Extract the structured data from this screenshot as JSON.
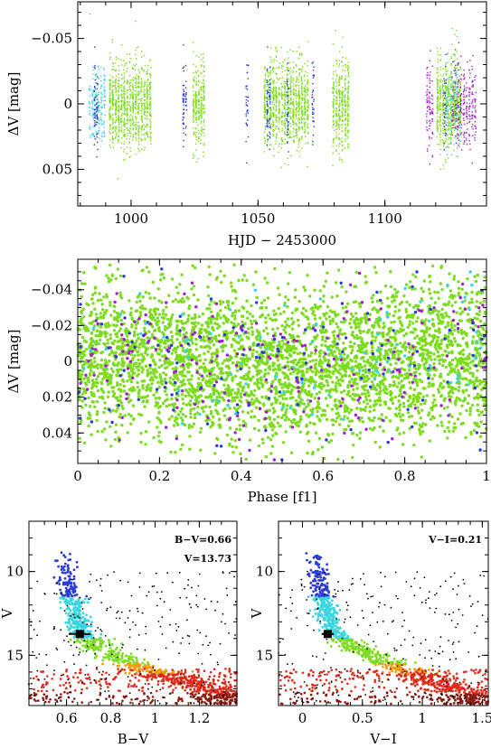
{
  "colors": {
    "cyan": "#3ad6e0",
    "green": "#7ddc1f",
    "blue": "#2a3ad8",
    "magenta": "#a020d0",
    "black": "#000000",
    "orange": "#f39a10",
    "red": "#dd2a1a",
    "darkred": "#8a1a10"
  },
  "chart_data": [
    {
      "type": "scatter",
      "xlabel": "HJD − 2453000",
      "ylabel": "ΔV [mag]",
      "xlim": [
        979,
        1140
      ],
      "ylim": [
        0.078,
        -0.078
      ],
      "y_inverted": true,
      "xticks": [
        1000,
        1050,
        1100
      ],
      "xtick_labels": [
        "1000",
        "1050",
        "1100"
      ],
      "yticks": [
        -0.05,
        0,
        0.05
      ],
      "ytick_labels": [
        "−0.05",
        "0",
        "0.05"
      ],
      "series": [
        {
          "color": "cyan",
          "segments": [
            [
              983,
              990
            ],
            [
              1124,
              1130
            ]
          ]
        },
        {
          "color": "green",
          "segments": [
            [
              991,
              1008
            ],
            [
              1024,
              1029
            ],
            [
              1052,
              1070
            ],
            [
              1079,
              1086
            ],
            [
              1120,
              1130
            ]
          ]
        },
        {
          "color": "blue",
          "segments": [
            [
              985,
              987
            ],
            [
              1020,
              1022
            ],
            [
              1045,
              1046
            ],
            [
              1053,
              1055
            ],
            [
              1061,
              1062
            ],
            [
              1071,
              1072
            ],
            [
              1123,
              1124
            ]
          ]
        },
        {
          "color": "magenta",
          "segments": [
            [
              1116,
              1119
            ],
            [
              1126,
              1136
            ]
          ]
        }
      ],
      "amplitude_mag": 0.03
    },
    {
      "type": "scatter",
      "xlabel": "Phase [f1]",
      "ylabel": "ΔV [mag]",
      "xlim": [
        0,
        1
      ],
      "ylim": [
        0.057,
        -0.057
      ],
      "y_inverted": true,
      "xticks": [
        0,
        0.2,
        0.4,
        0.6,
        0.8,
        1
      ],
      "xtick_labels": [
        "0",
        "0.2",
        "0.4",
        "0.6",
        "0.8",
        "1"
      ],
      "yticks": [
        -0.04,
        -0.02,
        0,
        0.02,
        0.04
      ],
      "ytick_labels": [
        "−0.04",
        "−0.02",
        "0",
        "0.02",
        "0.04"
      ],
      "series": [
        {
          "color": "green",
          "share": 0.9
        },
        {
          "color": "magenta",
          "share": 0.05
        },
        {
          "color": "blue",
          "share": 0.03
        },
        {
          "color": "cyan",
          "share": 0.02
        }
      ],
      "semi_amplitude_mag": 0.004
    },
    {
      "type": "scatter",
      "xlabel": "B−V",
      "ylabel": "V",
      "xlim": [
        0.43,
        1.37
      ],
      "ylim": [
        18.0,
        7.0
      ],
      "y_inverted": true,
      "xticks": [
        0.6,
        0.8,
        1,
        1.2
      ],
      "xtick_labels": [
        "0.6",
        "0.8",
        "1",
        "1.2"
      ],
      "yticks": [
        10,
        15
      ],
      "ytick_labels": [
        "10",
        "15"
      ],
      "annotations": [
        "B−V=0.66",
        "V=13.73"
      ],
      "star": {
        "x": 0.66,
        "y": 13.73,
        "xerr": 0.05
      },
      "sequence": [
        [
          0.58,
          9.0
        ],
        [
          0.62,
          11.5
        ],
        [
          0.66,
          13.5
        ],
        [
          0.75,
          14.6
        ],
        [
          0.88,
          15.4
        ],
        [
          1.0,
          16.0
        ],
        [
          1.15,
          16.6
        ],
        [
          1.3,
          17.2
        ]
      ]
    },
    {
      "type": "scatter",
      "xlabel": "V−I",
      "ylabel": "V",
      "xlim": [
        -0.2,
        1.55
      ],
      "ylim": [
        18.0,
        7.0
      ],
      "y_inverted": true,
      "xticks": [
        0,
        0.5,
        1,
        1.5
      ],
      "xtick_labels": [
        "0",
        "0.5",
        "1",
        "1.5"
      ],
      "yticks": [
        10,
        15
      ],
      "ytick_labels": [
        "10",
        "15"
      ],
      "annotations": [
        "V−I=0.21"
      ],
      "star": {
        "x": 0.21,
        "y": 13.73,
        "xerr": 0.05
      },
      "sequence": [
        [
          0.1,
          9.0
        ],
        [
          0.17,
          11.5
        ],
        [
          0.25,
          13.5
        ],
        [
          0.45,
          14.6
        ],
        [
          0.7,
          15.4
        ],
        [
          0.9,
          16.0
        ],
        [
          1.1,
          16.6
        ],
        [
          1.4,
          17.2
        ]
      ]
    }
  ]
}
